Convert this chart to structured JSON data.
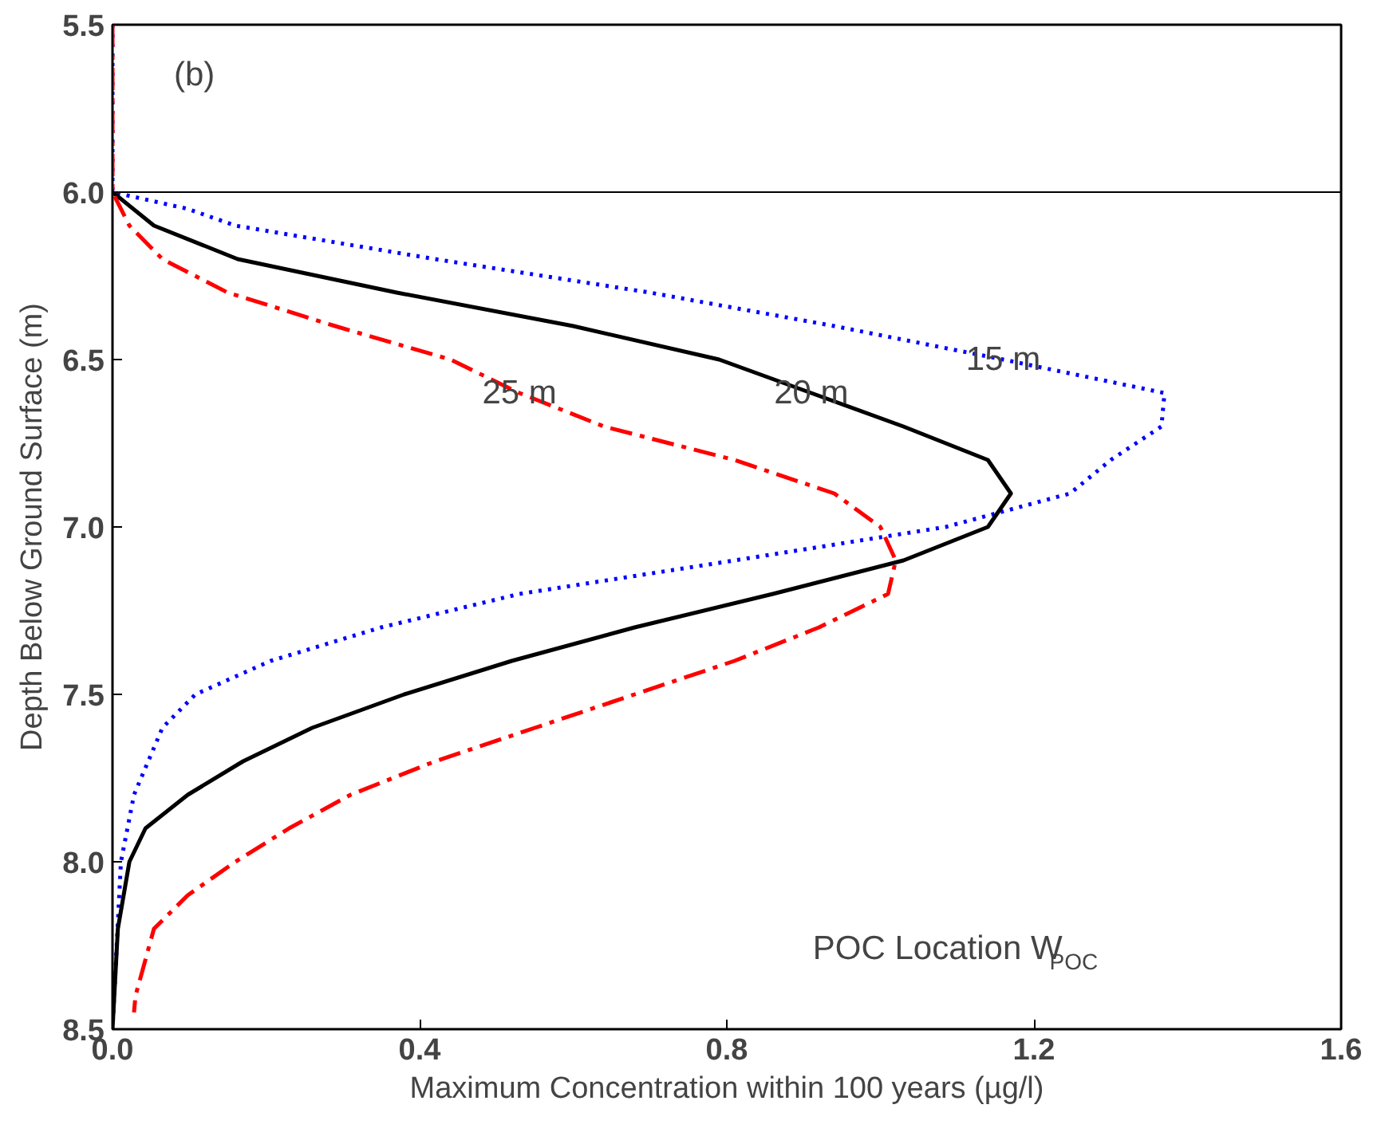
{
  "chart_data": {
    "type": "line",
    "xlabel": "Maximum Concentration within 100 years (µg/l)",
    "ylabel": "Depth Below Ground Surface (m)",
    "xlim": [
      0,
      1.6
    ],
    "ylim": [
      8.5,
      5.5
    ],
    "xticks": [
      {
        "value": 0,
        "label": "0.0"
      },
      0.4,
      0.8,
      1.2,
      1.6
    ],
    "yticks": [
      5.5,
      {
        "value": 6,
        "label": "6.0"
      },
      6.5,
      {
        "value": 7,
        "label": "7.0"
      },
      7.5,
      {
        "value": 8,
        "label": "8.0"
      },
      8.5
    ],
    "grid": false,
    "series": [
      {
        "color": "#0000ff",
        "line_style": "dotted",
        "x": [
          0,
          0,
          0.098,
          0.16,
          0.42,
          0.7,
          0.94,
          1.16,
          1.37,
          1.366,
          1.3,
          1.247,
          1.085,
          0.81,
          0.53,
          0.35,
          0.206,
          0.108,
          0.065,
          0.028,
          0.011,
          0
        ],
        "values": [
          5.5,
          6.0,
          6.05,
          6.1,
          6.2,
          6.3,
          6.4,
          6.5,
          6.6,
          6.7,
          6.8,
          6.9,
          7.0,
          7.1,
          7.2,
          7.3,
          7.4,
          7.5,
          7.6,
          7.8,
          8.0,
          8.5
        ]
      },
      {
        "color": "#000000",
        "line_style": "solid",
        "x": [
          0,
          0.054,
          0.163,
          0.37,
          0.6,
          0.79,
          0.91,
          1.03,
          1.14,
          1.17,
          1.14,
          1.03,
          0.86,
          0.68,
          0.52,
          0.38,
          0.26,
          0.17,
          0.098,
          0.043,
          0.022,
          0.007,
          0
        ],
        "values": [
          6.0,
          6.1,
          6.2,
          6.3,
          6.4,
          6.5,
          6.6,
          6.7,
          6.8,
          6.9,
          7.0,
          7.1,
          7.2,
          7.3,
          7.4,
          7.5,
          7.6,
          7.7,
          7.8,
          7.9,
          8.0,
          8.2,
          8.5
        ]
      },
      {
        "color": "#ff0000",
        "line_style": "dashdot",
        "x": [
          0,
          0,
          0.022,
          0.065,
          0.15,
          0.29,
          0.44,
          0.53,
          0.64,
          0.81,
          0.94,
          1.0,
          1.02,
          1.01,
          0.92,
          0.81,
          0.68,
          0.55,
          0.42,
          0.31,
          0.23,
          0.16,
          0.098,
          0.054,
          0.03,
          0.028
        ],
        "values": [
          5.5,
          6.0,
          6.1,
          6.2,
          6.3,
          6.4,
          6.5,
          6.6,
          6.7,
          6.8,
          6.9,
          7.0,
          7.1,
          7.2,
          7.3,
          7.4,
          7.5,
          7.6,
          7.7,
          7.8,
          7.9,
          8.0,
          8.1,
          8.2,
          8.4,
          8.45
        ]
      }
    ],
    "ref_lines": [
      {
        "axis": "y",
        "value": 6.0,
        "color": "#000000"
      }
    ],
    "annotations": [
      "(b)",
      {
        "text": "15 m",
        "x": 1.16,
        "y": 6.5
      },
      {
        "text": "20 m",
        "x": 0.91,
        "y": 6.6
      },
      {
        "text": "25 m",
        "x": 0.53,
        "y": 6.6
      },
      "POC Location W$_{POC}$"
    ]
  }
}
